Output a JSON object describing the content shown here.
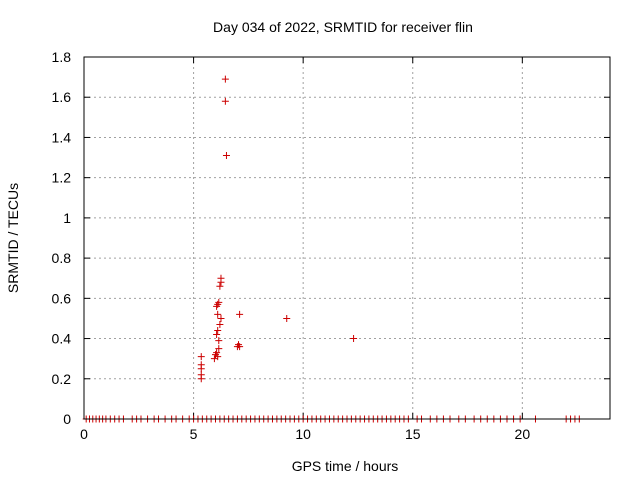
{
  "chart_data": {
    "type": "scatter",
    "title": "Day 034 of 2022, SRMTID for receiver flin",
    "xlabel": "GPS time / hours",
    "ylabel": "SRMTID / TECUs",
    "xlim": [
      0,
      24
    ],
    "ylim": [
      0,
      1.8
    ],
    "xticks": [
      0,
      5,
      10,
      15,
      20
    ],
    "yticks": [
      0,
      0.2,
      0.4,
      0.6,
      0.8,
      1,
      1.2,
      1.4,
      1.6,
      1.8
    ],
    "grid": true,
    "legend": "none",
    "marker": "plus",
    "color": "#cc0000",
    "series": [
      {
        "points": [
          [
            0.1,
            0
          ],
          [
            0.25,
            0
          ],
          [
            0.4,
            0
          ],
          [
            0.55,
            0
          ],
          [
            0.7,
            0
          ],
          [
            0.85,
            0
          ],
          [
            1.0,
            0
          ],
          [
            1.2,
            0
          ],
          [
            1.4,
            0
          ],
          [
            1.6,
            0
          ],
          [
            1.8,
            0
          ],
          [
            2.2,
            0
          ],
          [
            2.4,
            0
          ],
          [
            2.6,
            0
          ],
          [
            2.9,
            0
          ],
          [
            3.2,
            0
          ],
          [
            3.4,
            0
          ],
          [
            3.7,
            0
          ],
          [
            4.0,
            0
          ],
          [
            4.2,
            0
          ],
          [
            4.5,
            0
          ],
          [
            4.8,
            0
          ],
          [
            5.0,
            0
          ],
          [
            5.2,
            0
          ],
          [
            5.4,
            0
          ],
          [
            5.6,
            0
          ],
          [
            5.8,
            0
          ],
          [
            6.0,
            0
          ],
          [
            6.2,
            0
          ],
          [
            6.4,
            0
          ],
          [
            6.6,
            0
          ],
          [
            6.8,
            0
          ],
          [
            7.0,
            0
          ],
          [
            7.2,
            0
          ],
          [
            7.4,
            0
          ],
          [
            7.6,
            0
          ],
          [
            7.8,
            0
          ],
          [
            8.0,
            0
          ],
          [
            8.2,
            0
          ],
          [
            8.4,
            0
          ],
          [
            8.6,
            0
          ],
          [
            8.8,
            0
          ],
          [
            9.0,
            0
          ],
          [
            9.2,
            0
          ],
          [
            9.4,
            0
          ],
          [
            9.6,
            0
          ],
          [
            9.8,
            0
          ],
          [
            10.0,
            0
          ],
          [
            10.2,
            0
          ],
          [
            10.4,
            0
          ],
          [
            10.6,
            0
          ],
          [
            10.8,
            0
          ],
          [
            11.0,
            0
          ],
          [
            11.2,
            0
          ],
          [
            11.4,
            0
          ],
          [
            11.6,
            0
          ],
          [
            11.8,
            0
          ],
          [
            12.0,
            0
          ],
          [
            12.2,
            0
          ],
          [
            12.4,
            0
          ],
          [
            12.6,
            0
          ],
          [
            12.8,
            0
          ],
          [
            13.0,
            0
          ],
          [
            13.2,
            0
          ],
          [
            13.4,
            0
          ],
          [
            13.6,
            0
          ],
          [
            13.8,
            0
          ],
          [
            14.0,
            0
          ],
          [
            14.2,
            0
          ],
          [
            14.4,
            0
          ],
          [
            14.6,
            0
          ],
          [
            14.8,
            0
          ],
          [
            15.2,
            0
          ],
          [
            15.4,
            0
          ],
          [
            15.8,
            0
          ],
          [
            16.1,
            0
          ],
          [
            16.4,
            0
          ],
          [
            16.7,
            0
          ],
          [
            17.1,
            0
          ],
          [
            17.4,
            0
          ],
          [
            17.8,
            0
          ],
          [
            18.1,
            0
          ],
          [
            18.4,
            0
          ],
          [
            18.7,
            0
          ],
          [
            19.0,
            0
          ],
          [
            19.3,
            0
          ],
          [
            19.6,
            0
          ],
          [
            19.9,
            0
          ],
          [
            20.6,
            0
          ],
          [
            22.0,
            0
          ],
          [
            22.2,
            0
          ],
          [
            22.4,
            0
          ],
          [
            22.6,
            0
          ],
          [
            5.35,
            0.2
          ],
          [
            5.35,
            0.22
          ],
          [
            5.35,
            0.25
          ],
          [
            5.35,
            0.27
          ],
          [
            5.35,
            0.31
          ],
          [
            5.95,
            0.3
          ],
          [
            6.0,
            0.32
          ],
          [
            6.05,
            0.33
          ],
          [
            6.1,
            0.31
          ],
          [
            6.15,
            0.35
          ],
          [
            6.05,
            0.42
          ],
          [
            6.1,
            0.44
          ],
          [
            6.15,
            0.39
          ],
          [
            6.2,
            0.47
          ],
          [
            6.25,
            0.5
          ],
          [
            6.1,
            0.52
          ],
          [
            6.05,
            0.56
          ],
          [
            6.1,
            0.57
          ],
          [
            6.15,
            0.58
          ],
          [
            6.2,
            0.66
          ],
          [
            6.25,
            0.68
          ],
          [
            6.25,
            0.7
          ],
          [
            6.45,
            1.69
          ],
          [
            6.45,
            1.58
          ],
          [
            6.5,
            1.31
          ],
          [
            7.0,
            0.36
          ],
          [
            7.05,
            0.37
          ],
          [
            7.1,
            0.36
          ],
          [
            7.1,
            0.52
          ],
          [
            9.25,
            0.5
          ],
          [
            12.3,
            0.4
          ]
        ]
      }
    ]
  }
}
